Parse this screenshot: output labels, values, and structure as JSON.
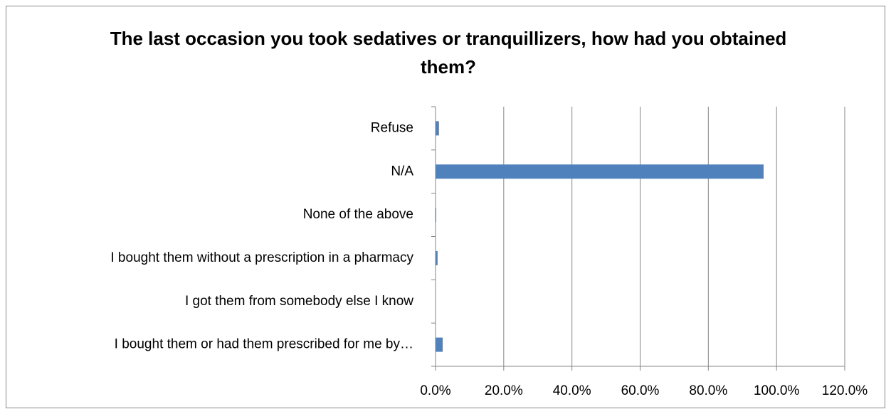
{
  "chart_data": {
    "type": "bar",
    "orientation": "horizontal",
    "title": "The last occasion you took sedatives or tranquillizers, how had you obtained them?",
    "categories": [
      "Refuse",
      "N/A",
      "None of the above",
      "I bought them without a prescription in a pharmacy",
      "I got them from somebody else I know",
      "I bought them or had them prescribed for me by…"
    ],
    "values": [
      1.0,
      96.2,
      0.2,
      0.6,
      0,
      2.1
    ],
    "color": "#4f81bd",
    "xlim": [
      0,
      120
    ],
    "xticks": [
      {
        "value": 0,
        "label": "0.0%"
      },
      {
        "value": 20,
        "label": "20.0%"
      },
      {
        "value": 40,
        "label": "40.0%"
      },
      {
        "value": 60,
        "label": "60.0%"
      },
      {
        "value": 80,
        "label": "80.0%"
      },
      {
        "value": 100,
        "label": "100.0%"
      },
      {
        "value": 120,
        "label": "120.0%"
      }
    ],
    "grid": true
  }
}
